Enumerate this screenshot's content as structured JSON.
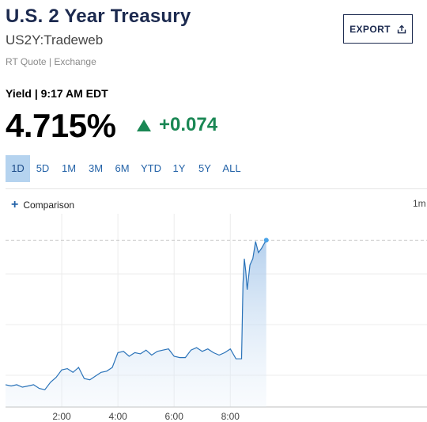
{
  "header": {
    "title": "U.S. 2 Year Treasury",
    "symbol": "US2Y:Tradeweb",
    "quote_source": "RT Quote | Exchange",
    "export_label": "EXPORT"
  },
  "quote": {
    "yield_label": "Yield | 9:17 AM EDT",
    "price": "4.715%",
    "change": "+0.074",
    "direction": "up"
  },
  "colors": {
    "up": "#1a8754",
    "line": "#2a73b9",
    "active_range_bg": "#b5d3ef",
    "title": "#1c2a4f"
  },
  "range_tabs": [
    {
      "label": "1D",
      "active": true
    },
    {
      "label": "5D",
      "active": false
    },
    {
      "label": "1M",
      "active": false
    },
    {
      "label": "3M",
      "active": false
    },
    {
      "label": "6M",
      "active": false
    },
    {
      "label": "YTD",
      "active": false
    },
    {
      "label": "1Y",
      "active": false
    },
    {
      "label": "5Y",
      "active": false
    },
    {
      "label": "ALL",
      "active": false
    }
  ],
  "comparison_label": "Comparison",
  "interval_label": "1m",
  "chart_data": {
    "type": "area",
    "x_ticks": [
      "2:00",
      "4:00",
      "6:00",
      "8:00"
    ],
    "x_tick_hours": [
      2,
      4,
      6,
      8
    ],
    "xlim": [
      0,
      15
    ],
    "ylim": [
      4.58,
      4.73
    ],
    "grid": true,
    "reference_value": 4.715,
    "series": [
      {
        "x": [
          0,
          0.2,
          0.4,
          0.6,
          0.8,
          1.0,
          1.2,
          1.4,
          1.6,
          1.8,
          2.0,
          2.2,
          2.4,
          2.6,
          2.8,
          3.0,
          3.2,
          3.4,
          3.6,
          3.8,
          4.0,
          4.2,
          4.4,
          4.6,
          4.8,
          5.0,
          5.2,
          5.4,
          5.6,
          5.8,
          6.0,
          6.2,
          6.4,
          6.6,
          6.8,
          7.0,
          7.2,
          7.4,
          7.6,
          7.8,
          8.0,
          8.2,
          8.4,
          8.45,
          8.5,
          8.55,
          8.6,
          8.7,
          8.8,
          8.9,
          9.0,
          9.1,
          9.2,
          9.28
        ],
        "y": [
          4.598,
          4.597,
          4.598,
          4.596,
          4.597,
          4.598,
          4.595,
          4.594,
          4.6,
          4.604,
          4.61,
          4.611,
          4.608,
          4.612,
          4.603,
          4.602,
          4.605,
          4.608,
          4.609,
          4.612,
          4.624,
          4.625,
          4.621,
          4.624,
          4.623,
          4.626,
          4.622,
          4.625,
          4.626,
          4.627,
          4.621,
          4.62,
          4.62,
          4.626,
          4.628,
          4.625,
          4.627,
          4.624,
          4.622,
          4.624,
          4.627,
          4.619,
          4.619,
          4.68,
          4.7,
          4.69,
          4.675,
          4.695,
          4.7,
          4.714,
          4.705,
          4.708,
          4.712,
          4.715
        ]
      }
    ]
  }
}
